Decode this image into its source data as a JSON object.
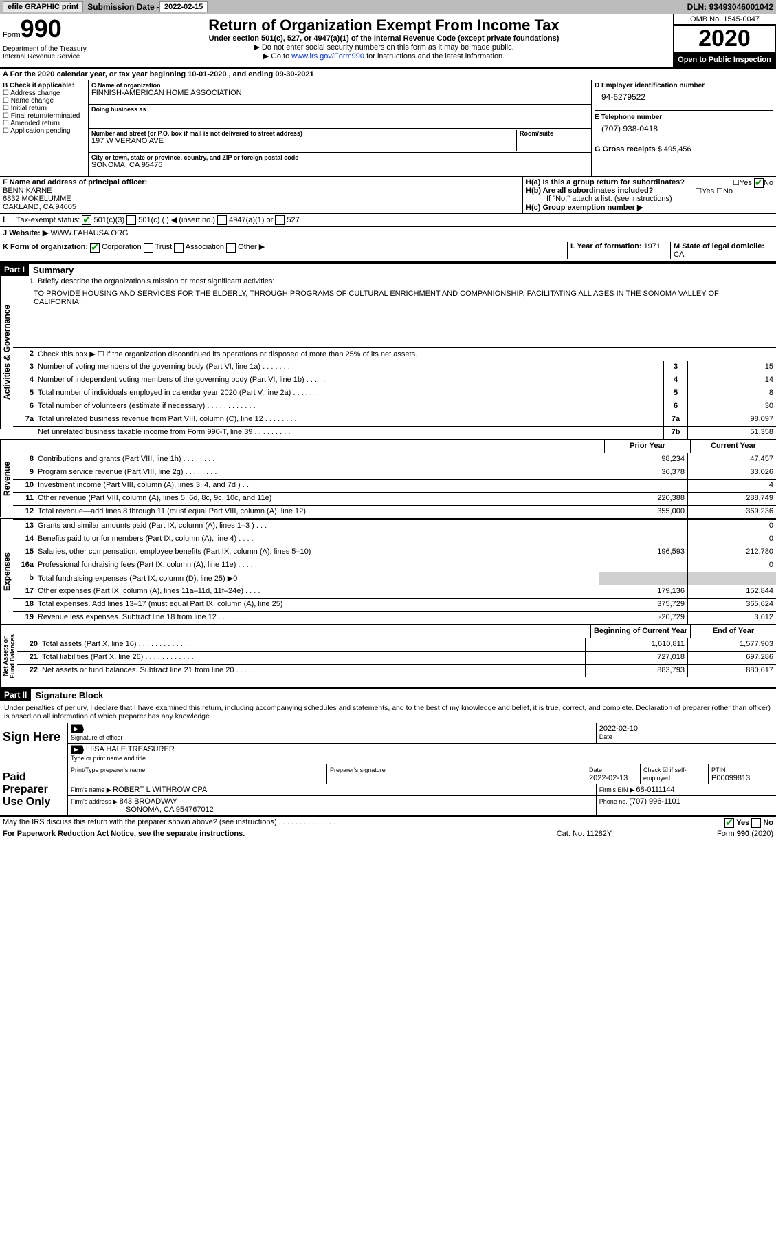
{
  "topbar": {
    "efile": "efile GRAPHIC print",
    "subdate_lbl": "Submission Date - ",
    "subdate": "2022-02-15",
    "dln_lbl": "DLN: ",
    "dln": "93493046001042"
  },
  "header": {
    "form": "Form",
    "num": "990",
    "title": "Return of Organization Exempt From Income Tax",
    "sub": "Under section 501(c), 527, or 4947(a)(1) of the Internal Revenue Code (except private foundations)",
    "note1": "▶ Do not enter social security numbers on this form as it may be made public.",
    "note2_pre": "▶ Go to ",
    "note2_link": "www.irs.gov/Form990",
    "note2_post": " for instructions and the latest information.",
    "dept": "Department of the Treasury\nInternal Revenue Service",
    "omb": "OMB No. 1545-0047",
    "year": "2020",
    "open": "Open to Public Inspection"
  },
  "period": "A For the 2020 calendar year, or tax year beginning 10-01-2020    , and ending 09-30-2021",
  "sectionB": {
    "hdr": "B Check if applicable:",
    "items": [
      "Address change",
      "Name change",
      "Initial return",
      "Final return/terminated",
      "Amended return",
      "Application pending"
    ]
  },
  "sectionC": {
    "name_lbl": "C Name of organization",
    "name": "FINNISH-AMERICAN HOME ASSOCIATION",
    "dba_lbl": "Doing business as",
    "dba": "",
    "addr_lbl": "Number and street (or P.O. box if mail is not delivered to street address)",
    "room_lbl": "Room/suite",
    "addr": "197 W VERANO AVE",
    "city_lbl": "City or town, state or province, country, and ZIP or foreign postal code",
    "city": "SONOMA, CA  95476"
  },
  "sectionD": {
    "ein_lbl": "D Employer identification number",
    "ein": "94-6279522",
    "phone_lbl": "E Telephone number",
    "phone": "(707) 938-0418",
    "gross_lbl": "G Gross receipts $ ",
    "gross": "495,456"
  },
  "sectionF": {
    "lbl": "F  Name and address of principal officer:",
    "name": "BENN KARNE",
    "addr1": "6832 MOKELUMME",
    "addr2": "OAKLAND, CA  94605"
  },
  "sectionH": {
    "a": "H(a)  Is this a group return for subordinates?",
    "b": "H(b)  Are all subordinates included?",
    "b_note": "If \"No,\" attach a list. (see instructions)",
    "c": "H(c)  Group exemption number ▶"
  },
  "taxexempt": {
    "lbl": "Tax-exempt status:",
    "opts": [
      "501(c)(3)",
      "501(c) (  ) ◀ (insert no.)",
      "4947(a)(1) or",
      "527"
    ]
  },
  "website": {
    "lbl": "Website: ▶",
    "val": "WWW.FAHAUSA.ORG"
  },
  "kform": {
    "lbl": "K Form of organization:",
    "opts": [
      "Corporation",
      "Trust",
      "Association",
      "Other ▶"
    ],
    "l_lbl": "L Year of formation: ",
    "l_val": "1971",
    "m_lbl": "M State of legal domicile: ",
    "m_val": "CA"
  },
  "part1": {
    "hdr": "Part I",
    "title": "Summary",
    "q1": "Briefly describe the organization's mission or most significant activities:",
    "mission": "TO PROVIDE HOUSING AND SERVICES FOR THE ELDERLY, THROUGH PROGRAMS OF CULTURAL ENRICHMENT AND COMPANIONSHIP, FACILITATING ALL AGES IN THE SONOMA VALLEY OF CALIFORNIA.",
    "q2": "Check this box ▶ ☐  if the organization discontinued its operations or disposed of more than 25% of its net assets.",
    "tabs": {
      "gov": "Activities & Governance",
      "rev": "Revenue",
      "exp": "Expenses",
      "net": "Net Assets or Fund Balances"
    },
    "hdr_prior": "Prior Year",
    "hdr_curr": "Current Year",
    "hdr_begin": "Beginning of Current Year",
    "hdr_end": "End of Year",
    "gov_lines": [
      {
        "n": "3",
        "d": "Number of voting members of the governing body (Part VI, line 1a)  .    .    .    .    .    .    .    .",
        "c": "3",
        "v": "15"
      },
      {
        "n": "4",
        "d": "Number of independent voting members of the governing body (Part VI, line 1b)  .    .    .    .    .",
        "c": "4",
        "v": "14"
      },
      {
        "n": "5",
        "d": "Total number of individuals employed in calendar year 2020 (Part V, line 2a)  .    .    .    .    .    .",
        "c": "5",
        "v": "8"
      },
      {
        "n": "6",
        "d": "Total number of volunteers (estimate if necessary)  .    .    .    .    .    .    .    .    .    .    .    .",
        "c": "6",
        "v": "30"
      },
      {
        "n": "7a",
        "d": "Total unrelated business revenue from Part VIII, column (C), line 12  .    .    .    .    .    .    .    .",
        "c": "7a",
        "v": "98,097"
      },
      {
        "n": "",
        "d": "Net unrelated business taxable income from Form 990-T, line 39  .    .    .    .    .    .    .    .    .",
        "c": "7b",
        "v": "51,358"
      }
    ],
    "rev_lines": [
      {
        "n": "8",
        "d": "Contributions and grants (Part VIII, line 1h)  .    .    .    .    .    .    .    .",
        "p": "98,234",
        "c": "47,457"
      },
      {
        "n": "9",
        "d": "Program service revenue (Part VIII, line 2g)  .    .    .    .    .    .    .    .",
        "p": "36,378",
        "c": "33,026"
      },
      {
        "n": "10",
        "d": "Investment income (Part VIII, column (A), lines 3, 4, and 7d )  .    .    .",
        "p": "",
        "c": "4"
      },
      {
        "n": "11",
        "d": "Other revenue (Part VIII, column (A), lines 5, 6d, 8c, 9c, 10c, and 11e)",
        "p": "220,388",
        "c": "288,749"
      },
      {
        "n": "12",
        "d": "Total revenue—add lines 8 through 11 (must equal Part VIII, column (A), line 12)",
        "p": "355,000",
        "c": "369,236"
      }
    ],
    "exp_lines": [
      {
        "n": "13",
        "d": "Grants and similar amounts paid (Part IX, column (A), lines 1–3 )  .    .    .",
        "p": "",
        "c": "0"
      },
      {
        "n": "14",
        "d": "Benefits paid to or for members (Part IX, column (A), line 4)  .    .    .    .",
        "p": "",
        "c": "0"
      },
      {
        "n": "15",
        "d": "Salaries, other compensation, employee benefits (Part IX, column (A), lines 5–10)",
        "p": "196,593",
        "c": "212,780"
      },
      {
        "n": "16a",
        "d": "Professional fundraising fees (Part IX, column (A), line 11e)  .    .    .    .    .",
        "p": "",
        "c": "0"
      },
      {
        "n": "b",
        "d": "Total fundraising expenses (Part IX, column (D), line 25) ▶0",
        "p": "shade",
        "c": "shade"
      },
      {
        "n": "17",
        "d": "Other expenses (Part IX, column (A), lines 11a–11d, 11f–24e)  .    .    .    .",
        "p": "179,136",
        "c": "152,844"
      },
      {
        "n": "18",
        "d": "Total expenses. Add lines 13–17 (must equal Part IX, column (A), line 25)",
        "p": "375,729",
        "c": "365,624"
      },
      {
        "n": "19",
        "d": "Revenue less expenses. Subtract line 18 from line 12  .    .    .    .    .    .    .",
        "p": "-20,729",
        "c": "3,612"
      }
    ],
    "net_lines": [
      {
        "n": "20",
        "d": "Total assets (Part X, line 16)  .    .    .    .    .    .    .    .    .    .    .    .    .",
        "p": "1,610,811",
        "c": "1,577,903"
      },
      {
        "n": "21",
        "d": "Total liabilities (Part X, line 26)  .    .    .    .    .    .    .    .    .    .    .    .",
        "p": "727,018",
        "c": "697,286"
      },
      {
        "n": "22",
        "d": "Net assets or fund balances. Subtract line 21 from line 20  .    .    .    .    .",
        "p": "883,793",
        "c": "880,617"
      }
    ]
  },
  "part2": {
    "hdr": "Part II",
    "title": "Signature Block",
    "decl": "Under penalties of perjury, I declare that I have examined this return, including accompanying schedules and statements, and to the best of my knowledge and belief, it is true, correct, and complete. Declaration of preparer (other than officer) is based on all information of which preparer has any knowledge.",
    "sign_here": "Sign Here",
    "sig_officer": "Signature of officer",
    "sig_date_lbl": "Date",
    "sig_date": "2022-02-10",
    "sig_name": "LIISA HALE  TREASURER",
    "sig_name_lbl": "Type or print name and title",
    "paid": "Paid Preparer Use Only",
    "prep_name_lbl": "Print/Type preparer's name",
    "prep_sig_lbl": "Preparer's signature",
    "prep_date_lbl": "Date",
    "prep_date": "2022-02-13",
    "prep_self": "Check ☑ if self-employed",
    "prep_ptin_lbl": "PTIN",
    "prep_ptin": "P00099813",
    "firm_name_lbl": "Firm's name    ▶ ",
    "firm_name": "ROBERT L WITHROW CPA",
    "firm_ein_lbl": "Firm's EIN ▶ ",
    "firm_ein": "68-0111144",
    "firm_addr_lbl": "Firm's address ▶ ",
    "firm_addr": "843 BROADWAY",
    "firm_addr2": "SONOMA, CA  954767012",
    "firm_phone_lbl": "Phone no. ",
    "firm_phone": "(707) 996-1101",
    "discuss": "May the IRS discuss this return with the preparer shown above? (see instructions)  .    .    .    .    .    .    .    .    .    .    .    .    .    .",
    "yes": "Yes",
    "no": "No"
  },
  "footer": {
    "l": "For Paperwork Reduction Act Notice, see the separate instructions.",
    "m": "Cat. No. 11282Y",
    "r": "Form 990 (2020)"
  }
}
